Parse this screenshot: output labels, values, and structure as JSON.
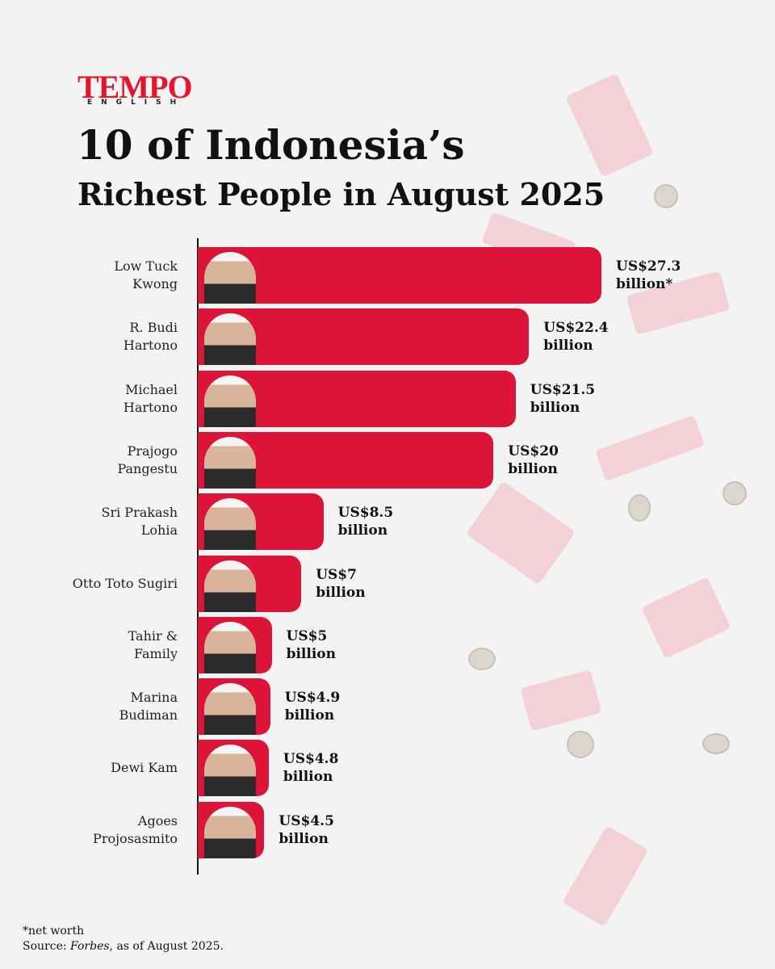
{
  "header": {
    "logo": "TEMPO",
    "logo_sub": "ENGLISH"
  },
  "chart_data": {
    "type": "bar",
    "orientation": "horizontal",
    "title": "10 of Indonesia’s",
    "subtitle": "Richest People in August 2025",
    "categories": [
      "Low Tuck\nKwong",
      "R. Budi\nHartono",
      "Michael\nHartono",
      "Prajogo\nPangestu",
      "Sri Prakash\nLohia",
      "Otto Toto Sugiri",
      "Tahir &\nFamily",
      "Marina\nBudiman",
      "Dewi Kam",
      "Agoes\nProjosasmito"
    ],
    "values": [
      27.3,
      22.4,
      21.5,
      20,
      8.5,
      7,
      5,
      4.9,
      4.8,
      4.5
    ],
    "value_labels": [
      "US$27.3\nbillion*",
      "US$22.4\nbillion",
      "US$21.5\nbillion",
      "US$20\nbillion",
      "US$8.5\nbillion",
      "US$7\nbillion",
      "US$5\nbillion",
      "US$4.9\nbillion",
      "US$4.8\nbillion",
      "US$4.5\nbillion"
    ],
    "color": "#dc1438"
  },
  "footer": {
    "note": "*net worth",
    "source_prefix": "Source: ",
    "source_name": "Forbes",
    "source_suffix": ", as of August 2025."
  }
}
